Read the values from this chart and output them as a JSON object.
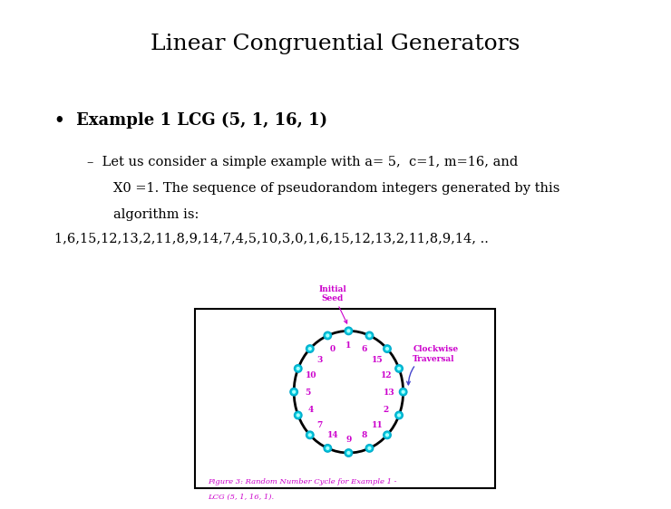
{
  "title": "Linear Congruential Generators",
  "bullet_text": "Example 1 LCG (5, 1, 16, 1)",
  "dash_text_line1": "Let us consider a simple example with a= 5,  c=1, m=16, and",
  "dash_text_line2": "X0 =1. The sequence of pseudorandom integers generated by this",
  "dash_text_line3": "algorithm is:",
  "sequence": "1,6,15,12,13,2,11,8,9,14,7,4,5,10,3,0,1,6,15,12,13,2,11,8,9,14, ..",
  "bg_color": "#ffffff",
  "title_fontsize": 18,
  "bullet_fontsize": 13,
  "body_fontsize": 10.5,
  "seq_fontsize": 10.5,
  "figure_caption_line1": "Figure 3: Random Number Cycle for Example 1 -",
  "figure_caption_line2": "LCG (5, 1, 16, 1).",
  "node_color": "#00ccdd",
  "node_edge": "#00aacc",
  "label_color": "#cc00cc",
  "arrow_color": "#4444cc",
  "initial_seed_color": "#cc00cc",
  "clockwise_color": "#cc00cc",
  "node_order": [
    1,
    6,
    15,
    12,
    13,
    2,
    11,
    8,
    9,
    14,
    7,
    4,
    5,
    10,
    3,
    0
  ]
}
